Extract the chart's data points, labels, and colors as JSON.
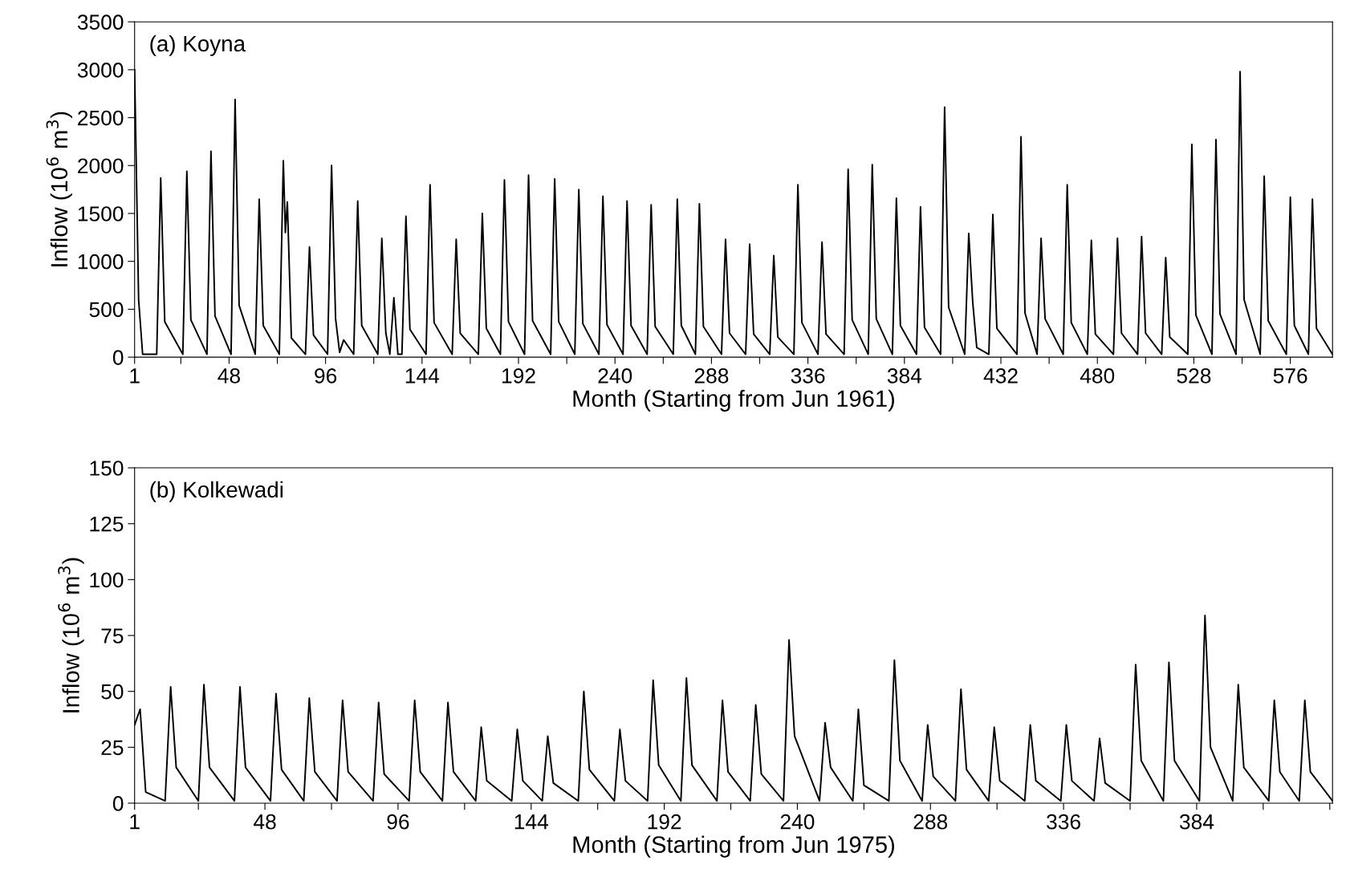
{
  "chart_data": [
    {
      "type": "line",
      "xlabel": "Month (Starting from Jun 1961)",
      "ylabel": "Inflow (10$^{6}$ m$^{3}$)",
      "annotations": [
        "(a) Koyna"
      ],
      "xlim": [
        1,
        597
      ],
      "ylim": [
        0,
        3500
      ],
      "xticks": [
        1,
        {
          "value": 24,
          "label": null
        },
        48,
        {
          "value": 72,
          "label": null
        },
        96,
        {
          "value": 120,
          "label": null
        },
        144,
        {
          "value": 168,
          "label": null
        },
        192,
        {
          "value": 216,
          "label": null
        },
        240,
        {
          "value": 264,
          "label": null
        },
        288,
        {
          "value": 312,
          "label": null
        },
        336,
        {
          "value": 360,
          "label": null
        },
        384,
        {
          "value": 408,
          "label": null
        },
        432,
        {
          "value": 456,
          "label": null
        },
        480,
        {
          "value": 504,
          "label": null
        },
        528,
        {
          "value": 552,
          "label": null
        },
        576
      ],
      "yticks": [
        0,
        500,
        1000,
        1500,
        2000,
        2500,
        3000,
        3500
      ],
      "grid": false,
      "marker": "none",
      "line_style": "solid",
      "series": [
        {
          "color": "#000000",
          "x": [
            1,
            3,
            5,
            12,
            14,
            16,
            25,
            27,
            29,
            37,
            39,
            41,
            49,
            51,
            53,
            61,
            63,
            65,
            73,
            75,
            76,
            77,
            79,
            86,
            88,
            90,
            97,
            99,
            101,
            103,
            105,
            110,
            112,
            114,
            122,
            124,
            126,
            128,
            130,
            132,
            134,
            136,
            138,
            146,
            148,
            150,
            159,
            161,
            163,
            172,
            174,
            176,
            183,
            185,
            187,
            195,
            197,
            199,
            208,
            210,
            212,
            220,
            222,
            224,
            232,
            234,
            236,
            244,
            246,
            248,
            256,
            258,
            260,
            269,
            271,
            273,
            280,
            282,
            284,
            293,
            295,
            297,
            305,
            307,
            309,
            317,
            319,
            321,
            329,
            331,
            333,
            341,
            343,
            345,
            354,
            356,
            358,
            366,
            368,
            370,
            378,
            380,
            382,
            390,
            392,
            394,
            402,
            404,
            406,
            414,
            416,
            418,
            420,
            426,
            428,
            430,
            440,
            442,
            444,
            450,
            452,
            454,
            463,
            465,
            467,
            475,
            477,
            479,
            488,
            490,
            492,
            500,
            502,
            504,
            512,
            514,
            516,
            525,
            527,
            529,
            537,
            539,
            541,
            549,
            551,
            553,
            561,
            563,
            565,
            574,
            576,
            578,
            585,
            587,
            589,
            597
          ],
          "values": [
            3000,
            600,
            30,
            30,
            1870,
            370,
            30,
            1940,
            390,
            30,
            2150,
            430,
            30,
            2690,
            540,
            30,
            1650,
            330,
            30,
            2050,
            1300,
            1620,
            200,
            30,
            1150,
            230,
            30,
            2000,
            400,
            50,
            180,
            30,
            1630,
            330,
            30,
            1240,
            250,
            30,
            620,
            30,
            30,
            1470,
            290,
            30,
            1800,
            360,
            30,
            1230,
            250,
            30,
            1500,
            300,
            30,
            1850,
            370,
            30,
            1900,
            380,
            30,
            1860,
            370,
            30,
            1750,
            350,
            30,
            1680,
            340,
            30,
            1630,
            330,
            30,
            1590,
            320,
            30,
            1650,
            330,
            30,
            1600,
            320,
            30,
            1230,
            250,
            30,
            1180,
            240,
            30,
            1060,
            210,
            30,
            1800,
            360,
            30,
            1200,
            240,
            30,
            1960,
            390,
            30,
            2010,
            400,
            30,
            1660,
            330,
            30,
            1570,
            310,
            30,
            2610,
            520,
            30,
            1290,
            570,
            100,
            30,
            1490,
            300,
            30,
            2300,
            460,
            30,
            1240,
            400,
            30,
            1800,
            360,
            30,
            1220,
            240,
            30,
            1240,
            250,
            30,
            1260,
            250,
            30,
            1040,
            210,
            30,
            2220,
            440,
            30,
            2270,
            450,
            30,
            2980,
            600,
            30,
            1890,
            380,
            30,
            1670,
            330,
            30,
            1650,
            300,
            30
          ]
        }
      ]
    },
    {
      "type": "line",
      "xlabel": "Month (Starting from Jun 1975)",
      "ylabel": "Inflow (10$^{6}$ m$^{3}$)",
      "annotations": [
        "(b) Kolkewadi"
      ],
      "xlim": [
        1,
        433
      ],
      "ylim": [
        0,
        150
      ],
      "xticks": [
        1,
        {
          "value": 24,
          "label": null
        },
        48,
        {
          "value": 72,
          "label": null
        },
        96,
        {
          "value": 120,
          "label": null
        },
        144,
        {
          "value": 168,
          "label": null
        },
        192,
        {
          "value": 216,
          "label": null
        },
        240,
        {
          "value": 264,
          "label": null
        },
        288,
        {
          "value": 312,
          "label": null
        },
        336,
        {
          "value": 360,
          "label": null
        },
        384,
        {
          "value": 408,
          "label": null
        },
        {
          "value": 432,
          "label": null
        }
      ],
      "yticks": [
        0,
        25,
        50,
        75,
        100,
        125,
        150
      ],
      "grid": false,
      "marker": "none",
      "line_style": "solid",
      "series": [
        {
          "color": "#000000",
          "x": [
            1,
            3,
            5,
            12,
            14,
            16,
            24,
            26,
            28,
            37,
            39,
            41,
            50,
            52,
            54,
            62,
            64,
            66,
            74,
            76,
            78,
            87,
            89,
            91,
            100,
            102,
            104,
            112,
            114,
            116,
            124,
            126,
            128,
            137,
            139,
            141,
            148,
            150,
            152,
            161,
            163,
            165,
            174,
            176,
            178,
            186,
            188,
            190,
            198,
            200,
            202,
            211,
            213,
            215,
            223,
            225,
            227,
            235,
            237,
            239,
            248,
            250,
            252,
            260,
            262,
            264,
            273,
            275,
            277,
            285,
            287,
            289,
            297,
            299,
            301,
            309,
            311,
            313,
            322,
            324,
            326,
            335,
            337,
            339,
            347,
            349,
            351,
            360,
            362,
            364,
            372,
            374,
            376,
            385,
            387,
            389,
            397,
            399,
            401,
            410,
            412,
            414,
            421,
            423,
            425,
            433
          ],
          "values": [
            35,
            42,
            5,
            1,
            52,
            16,
            1,
            53,
            16,
            1,
            52,
            16,
            1,
            49,
            15,
            1,
            47,
            14,
            1,
            46,
            14,
            1,
            45,
            13,
            1,
            46,
            14,
            1,
            45,
            14,
            1,
            34,
            10,
            1,
            33,
            10,
            1,
            30,
            9,
            1,
            50,
            15,
            1,
            33,
            10,
            1,
            55,
            17,
            1,
            56,
            17,
            1,
            46,
            14,
            1,
            44,
            13,
            1,
            73,
            30,
            1,
            36,
            16,
            1,
            42,
            8,
            1,
            64,
            19,
            1,
            35,
            12,
            1,
            51,
            15,
            1,
            34,
            10,
            1,
            35,
            10,
            1,
            35,
            10,
            1,
            29,
            9,
            1,
            62,
            19,
            1,
            63,
            19,
            1,
            84,
            25,
            1,
            53,
            16,
            1,
            46,
            14,
            1,
            46,
            14,
            1
          ]
        }
      ]
    }
  ]
}
